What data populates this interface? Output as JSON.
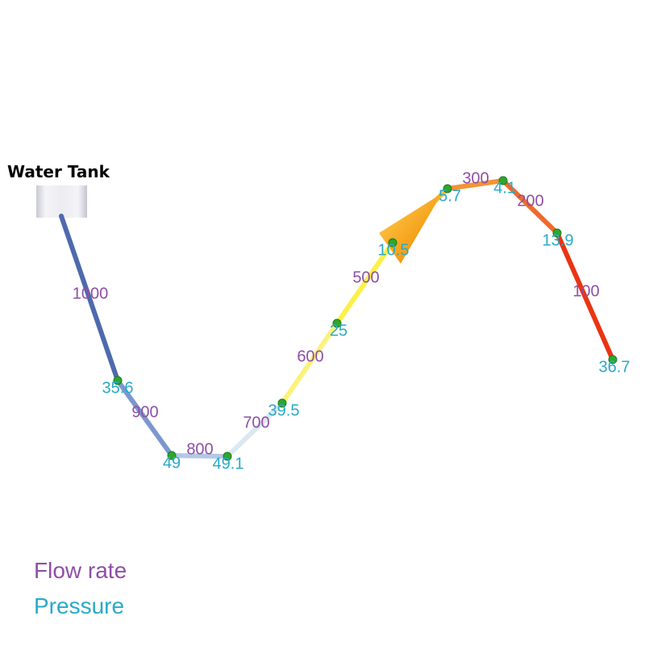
{
  "tank": {
    "title": "Water Tank"
  },
  "legend": {
    "flow_label": "Flow rate",
    "pressure_label": "Pressure"
  },
  "colors": {
    "flow_text": "#8e4fa5",
    "pressure_text": "#2aa9c9",
    "node": "#2ea62e",
    "arrow": "#f5a623"
  },
  "segments": [
    {
      "flow": "1000",
      "color": "#4d6aae"
    },
    {
      "flow": "900",
      "color": "#7a98cf"
    },
    {
      "flow": "800",
      "color": "#b4c8e6"
    },
    {
      "flow": "700",
      "color": "#dbe8f0"
    },
    {
      "flow": "600",
      "color": "#fbf27a"
    },
    {
      "flow": "500",
      "color": "#fcf048"
    },
    {
      "flow": "",
      "color": "#f9c23a"
    },
    {
      "flow": "300",
      "color": "#f39334"
    },
    {
      "flow": "200",
      "color": "#ef6a2c"
    },
    {
      "flow": "100",
      "color": "#ea3412"
    }
  ],
  "nodes": [
    {
      "pressure": "35.6"
    },
    {
      "pressure": "49"
    },
    {
      "pressure": "49.1"
    },
    {
      "pressure": "39.5"
    },
    {
      "pressure": "25"
    },
    {
      "pressure": "10.5"
    },
    {
      "pressure": "5.7"
    },
    {
      "pressure": "4.1"
    },
    {
      "pressure": "13.9"
    },
    {
      "pressure": "36.7"
    }
  ]
}
